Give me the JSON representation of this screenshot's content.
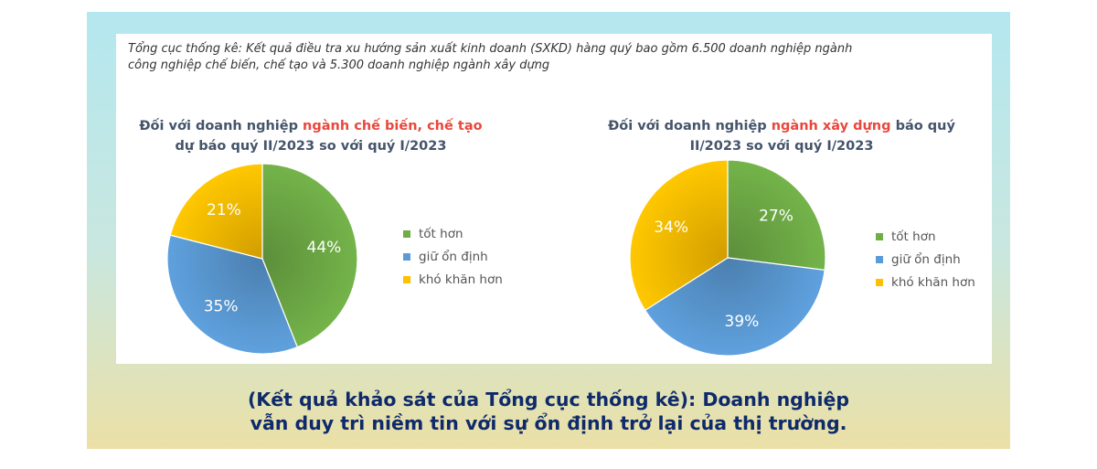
{
  "note": {
    "line1": "Tổng cục thống kê: Kết quả điều tra xu hướng sản xuất kinh doanh (SXKD) hàng quý bao gồm 6.500 doanh nghiệp ngành",
    "line2": "công nghiệp chế biến, chế tạo và 5.300 doanh nghiệp ngành xây dựng"
  },
  "chart_data": [
    {
      "type": "pie",
      "title": {
        "prefix": "Đối với doanh nghiệp ",
        "highlight": "ngành chế biến, chế tạo",
        "suffix": "",
        "line2": "dự báo quý II/2023 so với quý I/2023"
      },
      "categories": [
        "tốt hơn",
        "giữ ổn định",
        "khó khăn hơn"
      ],
      "values": [
        44,
        35,
        21
      ],
      "labels": [
        "44%",
        "35%",
        "21%"
      ],
      "colors": [
        "#70ad47",
        "#5b9bd5",
        "#ffc000"
      ],
      "legend_position": "right",
      "start": "top",
      "direction": "clockwise"
    },
    {
      "type": "pie",
      "title": {
        "prefix": "Đối với doanh nghiệp ",
        "highlight": "ngành xây dựng",
        "suffix": " báo quý",
        "line2": "II/2023 so với quý I/2023"
      },
      "categories": [
        "tốt hơn",
        "giữ ổn định",
        "khó khăn hơn"
      ],
      "values": [
        27,
        39,
        34
      ],
      "labels": [
        "27%",
        "39%",
        "34%"
      ],
      "colors": [
        "#70ad47",
        "#5b9bd5",
        "#ffc000"
      ],
      "legend_position": "right",
      "start": "top",
      "direction": "clockwise"
    }
  ],
  "caption": {
    "line1": "(Kết quả khảo sát của Tổng cục thống kê): Doanh nghiệp",
    "line2": "vẫn duy trì niềm tin với sự ổn định trở lại của thị trường."
  }
}
